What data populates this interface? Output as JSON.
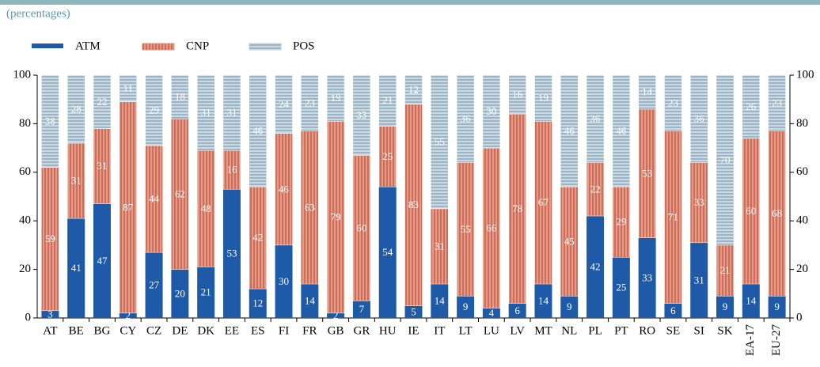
{
  "chart_data": {
    "type": "stacked_bar",
    "subtitle": "(percentages)",
    "categories": [
      "AT",
      "BE",
      "BG",
      "CY",
      "CZ",
      "DE",
      "DK",
      "EE",
      "ES",
      "FI",
      "FR",
      "GB",
      "GR",
      "HU",
      "IE",
      "IT",
      "LT",
      "LU",
      "LV",
      "MT",
      "NL",
      "PL",
      "PT",
      "RO",
      "SE",
      "SI",
      "SK",
      "EA-17",
      "EU-27"
    ],
    "series": [
      {
        "name": "ATM",
        "color": "#1f5aa8",
        "values": [
          3,
          41,
          47,
          2,
          27,
          20,
          21,
          53,
          12,
          30,
          14,
          2,
          7,
          54,
          5,
          14,
          9,
          4,
          6,
          14,
          9,
          42,
          25,
          33,
          6,
          31,
          9,
          14,
          9
        ]
      },
      {
        "name": "CNP",
        "color": "#e0907a",
        "values": [
          59,
          31,
          31,
          87,
          44,
          62,
          48,
          16,
          42,
          46,
          63,
          79,
          60,
          25,
          83,
          31,
          55,
          66,
          78,
          67,
          45,
          22,
          29,
          53,
          71,
          33,
          21,
          60,
          68
        ]
      },
      {
        "name": "POS",
        "color": "#b8ccd8",
        "values": [
          38,
          28,
          22,
          11,
          29,
          18,
          31,
          31,
          46,
          24,
          23,
          19,
          33,
          21,
          12,
          55,
          36,
          30,
          16,
          19,
          46,
          36,
          46,
          14,
          23,
          36,
          70,
          26,
          23
        ]
      }
    ],
    "ylim": [
      0,
      100
    ],
    "yticks": [
      0,
      20,
      40,
      60,
      80,
      100
    ],
    "y2lim": [
      0,
      100
    ],
    "y2ticks": [
      0,
      20,
      40,
      60,
      80,
      100
    ]
  }
}
